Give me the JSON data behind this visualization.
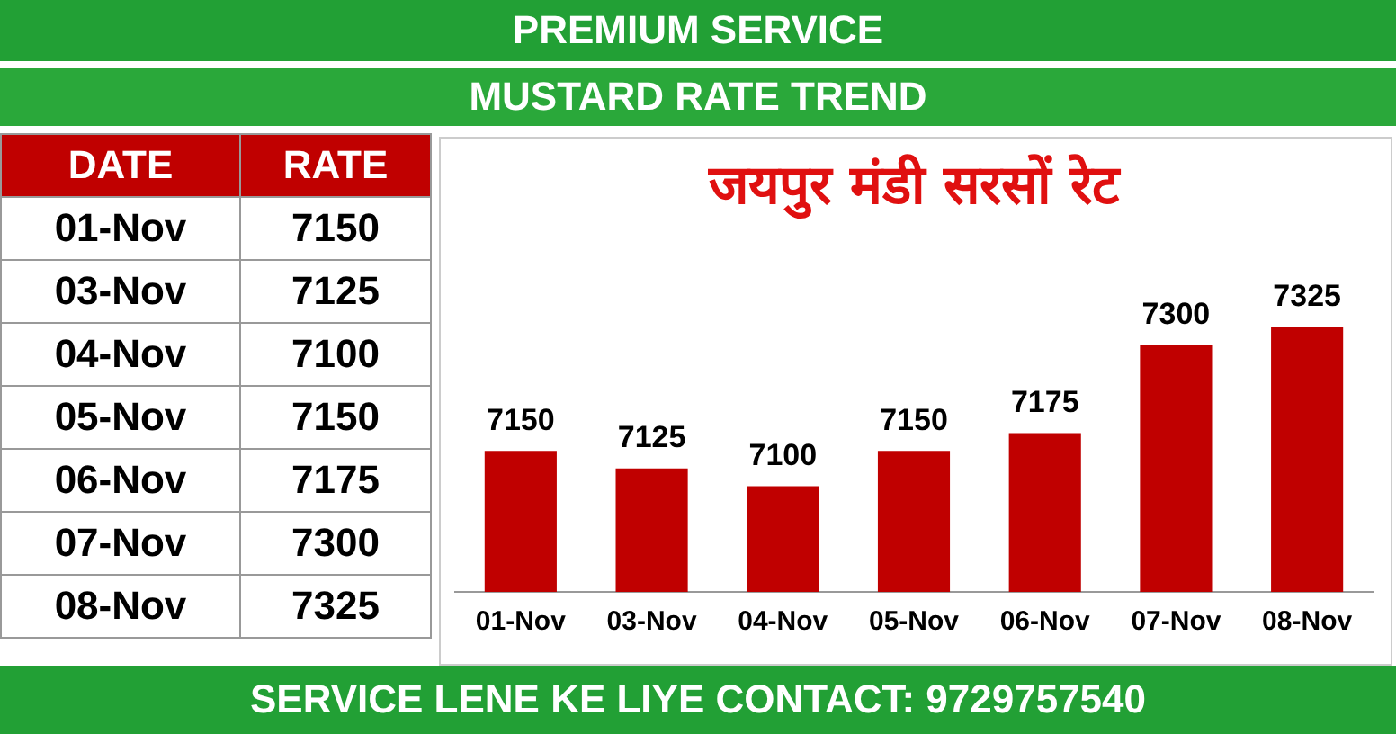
{
  "chart_data": [
    {
      "type": "other",
      "categories": [
        "01-Nov",
        "03-Nov",
        "04-Nov",
        "05-Nov",
        "06-Nov",
        "07-Nov",
        "08-Nov"
      ],
      "values": [
        7150,
        7125,
        7100,
        7150,
        7175,
        7300,
        7325
      ],
      "data_labels": true,
      "annotations": [
        "DATE",
        "RATE"
      ]
    },
    {
      "type": "bar",
      "title": "जयपुर मंडी सरसों रेट",
      "categories": [
        "01-Nov",
        "03-Nov",
        "04-Nov",
        "05-Nov",
        "06-Nov",
        "07-Nov",
        "08-Nov"
      ],
      "values": [
        7150,
        7125,
        7100,
        7150,
        7175,
        7300,
        7325
      ],
      "color": "#c00000",
      "tick_labels": "x",
      "grid": false,
      "legend": false,
      "data_labels": true,
      "annotations": [
        "PREMIUM SERVICE",
        "MUSTARD RATE TREND",
        "SERVICE LENE KE LIYE CONTACT: 9729757540"
      ]
    }
  ]
}
